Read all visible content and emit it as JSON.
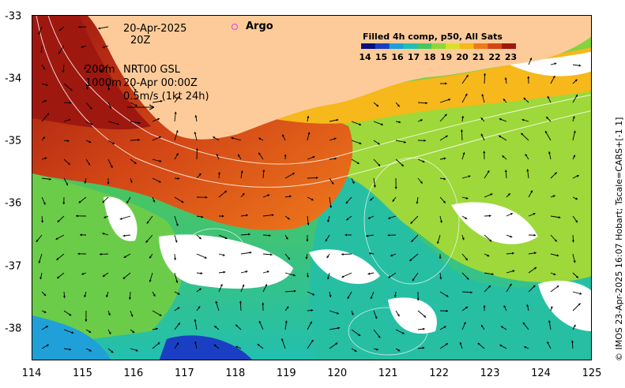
{
  "header": {
    "date": "20-Apr-2025",
    "time": "20Z",
    "depth_200": "200m",
    "depth_1000": "1000m",
    "product": "NRT00 GSL",
    "product_time": "20-Apr 00:00Z",
    "scale": "0.5m/s (1kt 24h)"
  },
  "argo": {
    "label": "Argo",
    "color": "#e040e0"
  },
  "legend": {
    "title": "Filled 4h comp, p50, All Sats",
    "ticks": [
      "14",
      "15",
      "16",
      "17",
      "18",
      "19",
      "20",
      "21",
      "22",
      "23"
    ]
  },
  "axes": {
    "x_ticks": [
      "114",
      "115",
      "116",
      "117",
      "118",
      "119",
      "120",
      "121",
      "122",
      "123",
      "124",
      "125"
    ],
    "y_ticks": [
      "-33",
      "-34",
      "-35",
      "-36",
      "-37",
      "-38"
    ],
    "lon_range": [
      114,
      125
    ],
    "lat_range": [
      -38.5,
      -33
    ]
  },
  "credit": "© IMOS 23-Apr-2025 16:07 Hobart; Tscale=CARS+[-1 1]",
  "colors": {
    "land": "#fdcb9a",
    "cloud": "#ffffff",
    "colormap": [
      "#08107a",
      "#1a3fc4",
      "#1fa0d8",
      "#22c0b0",
      "#4ac460",
      "#8fd63a",
      "#d9e02a",
      "#f6b81a",
      "#ef7a1c",
      "#d24616",
      "#9e1810"
    ]
  }
}
